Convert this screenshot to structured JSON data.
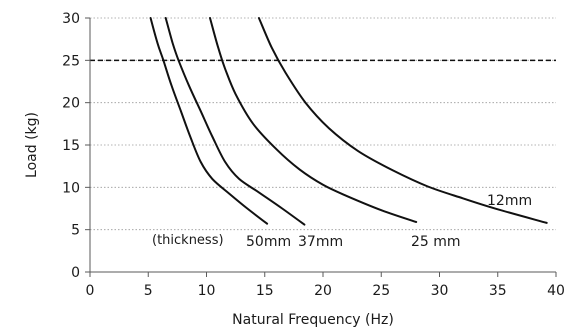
{
  "chart_data": {
    "type": "line",
    "title": "",
    "xlabel": "Natural Frequency (Hz)",
    "ylabel": "Load (kg)",
    "xlim": [
      0,
      40
    ],
    "ylim": [
      0,
      30
    ],
    "xticks": [
      "0",
      "5",
      "10",
      "15",
      "20",
      "25",
      "30",
      "35",
      "40"
    ],
    "yticks": [
      "0",
      "5",
      "10",
      "15",
      "20",
      "25",
      "30"
    ],
    "grid": "horizontal-dotted",
    "reference_line": {
      "y": 25,
      "style": "dashed"
    },
    "legend_note": "(thickness)",
    "series": [
      {
        "name": "50mm",
        "points": [
          [
            5.2,
            30
          ],
          [
            5.8,
            27
          ],
          [
            6.3,
            25
          ],
          [
            7,
            22
          ],
          [
            7.8,
            19
          ],
          [
            8.6,
            16
          ],
          [
            9.5,
            13
          ],
          [
            10.5,
            11
          ],
          [
            12,
            9.2
          ],
          [
            13.5,
            7.5
          ],
          [
            15.2,
            5.7
          ]
        ]
      },
      {
        "name": "37mm",
        "points": [
          [
            6.5,
            30
          ],
          [
            7.1,
            27
          ],
          [
            7.6,
            25
          ],
          [
            8.5,
            22
          ],
          [
            9.5,
            19
          ],
          [
            10.5,
            16
          ],
          [
            11.6,
            13
          ],
          [
            12.8,
            11
          ],
          [
            14.5,
            9.4
          ],
          [
            16.5,
            7.5
          ],
          [
            18.4,
            5.6
          ]
        ]
      },
      {
        "name": "25 mm",
        "points": [
          [
            10.3,
            30
          ],
          [
            11,
            26.5
          ],
          [
            11.6,
            24
          ],
          [
            12.5,
            21
          ],
          [
            14,
            17.5
          ],
          [
            16,
            14.5
          ],
          [
            18,
            12.1
          ],
          [
            20,
            10.3
          ],
          [
            22,
            9
          ],
          [
            25,
            7.3
          ],
          [
            28,
            5.9
          ]
        ]
      },
      {
        "name": "12mm",
        "points": [
          [
            14.5,
            30
          ],
          [
            15.6,
            26.5
          ],
          [
            16.8,
            23.5
          ],
          [
            18.5,
            20
          ],
          [
            20.5,
            17
          ],
          [
            23,
            14.3
          ],
          [
            26,
            12
          ],
          [
            29,
            10.1
          ],
          [
            32,
            8.7
          ],
          [
            35,
            7.4
          ],
          [
            39.2,
            5.8
          ]
        ]
      }
    ]
  },
  "colors": {
    "curve": "#111111",
    "grid": "#9a9a9a",
    "axis": "#5a5a5a",
    "reference_line": "#111111"
  }
}
